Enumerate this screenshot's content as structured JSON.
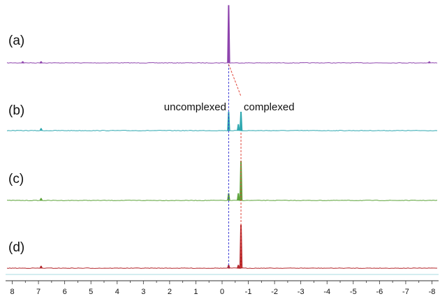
{
  "chart_data": {
    "type": "line",
    "xlim": [
      8.2,
      -8.2
    ],
    "x_ticks": [
      "8",
      "7",
      "6",
      "5",
      "4",
      "3",
      "2",
      "1",
      "0",
      "-1",
      "-2",
      "-3",
      "-4",
      "-5",
      "-6",
      "-7",
      "-8"
    ],
    "series": [
      {
        "label": "(a)",
        "color": "#8e44ad",
        "peaks": [
          {
            "ppm": 7.6,
            "height": 0.02
          },
          {
            "ppm": 6.9,
            "height": 0.02
          },
          {
            "ppm": -0.25,
            "height": 1.0
          },
          {
            "ppm": -7.9,
            "height": 0.015
          }
        ]
      },
      {
        "label": "(b)",
        "color": "#2fa8b0",
        "peaks": [
          {
            "ppm": 6.9,
            "height": 0.06
          },
          {
            "ppm": -0.25,
            "height": 0.55
          },
          {
            "ppm": -0.62,
            "height": 0.18
          },
          {
            "ppm": -0.72,
            "height": 0.55
          }
        ]
      },
      {
        "label": "(c)",
        "color": "#5da33a",
        "peaks": [
          {
            "ppm": 6.9,
            "height": 0.04
          },
          {
            "ppm": -0.25,
            "height": 0.14
          },
          {
            "ppm": -0.62,
            "height": 0.14
          },
          {
            "ppm": -0.72,
            "height": 0.8
          }
        ]
      },
      {
        "label": "(d)",
        "color": "#b3262b",
        "peaks": [
          {
            "ppm": 6.9,
            "height": 0.04
          },
          {
            "ppm": -0.25,
            "height": 0.06
          },
          {
            "ppm": -0.62,
            "height": 0.06
          },
          {
            "ppm": -0.72,
            "height": 0.88
          }
        ]
      }
    ],
    "annotations": [
      {
        "text": "uncomplexed",
        "ppm": -0.25,
        "panel": "(b)"
      },
      {
        "text": "complexed",
        "ppm": -0.72,
        "panel": "(b)"
      }
    ],
    "guide_lines": [
      {
        "color": "#3a3ad6",
        "ppm": -0.25,
        "style": "dashed"
      },
      {
        "color": "#e0453a",
        "ppm": -0.72,
        "style": "dashed",
        "from_ppm": -0.25
      }
    ],
    "grid": false
  }
}
